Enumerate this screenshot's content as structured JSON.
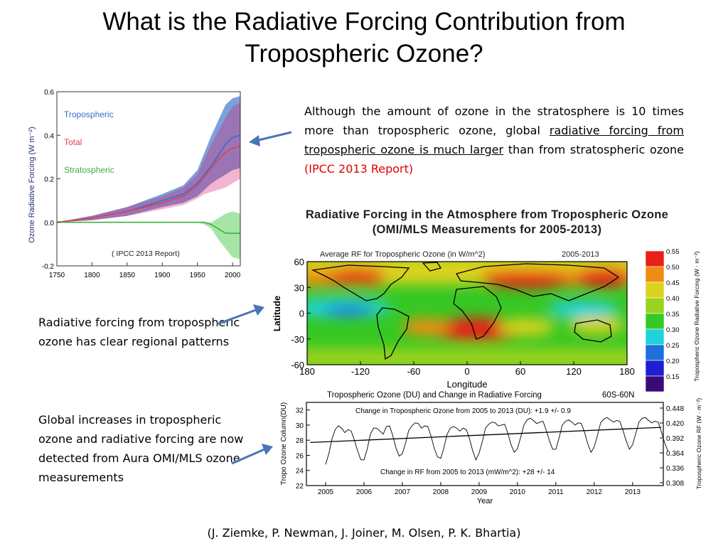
{
  "slide": {
    "title_line1": "What is the Radiative Forcing Contribution from",
    "title_line2": "Tropospheric Ozone?",
    "note_top": {
      "part1": "Although the amount of ozone in the stratosphere is 10 times more than tropospheric ozone, global ",
      "underlined": "radiative forcing from tropospheric ozone is much larger",
      "part2": " than from stratospheric ozone ",
      "red": "(IPCC 2013 Report)"
    },
    "note_mid": "Radiative forcing from tropospheric ozone has clear regional patterns",
    "note_bottom": "Global increases in tropospheric ozone and radiative forcing are now detected from Aura OMI/MLS ozone measurements",
    "credit": "(J. Ziemke, P. Newman, J. Joiner, M. Olsen, P. K. Bhartia)",
    "arrow_color": "#4a74b8"
  },
  "chart_data": [
    {
      "type": "line",
      "ylabel": "Ozone Radiative Forcing (W m⁻²)",
      "xlim": [
        1750,
        2011
      ],
      "ylim": [
        -0.2,
        0.6
      ],
      "xticks": [
        1750,
        1800,
        1850,
        1900,
        1950,
        2000
      ],
      "yticks": [
        -0.2,
        0.0,
        0.2,
        0.4,
        0.6
      ],
      "annotation": "( IPCC 2013 Report)",
      "legend": [
        "Tropospheric",
        "Total",
        "Stratospheric"
      ],
      "colors": {
        "Tropospheric": "#3a6cc8",
        "Total": "#e04050",
        "Stratospheric": "#40b040"
      },
      "x": [
        1750,
        1800,
        1850,
        1900,
        1930,
        1950,
        1960,
        1970,
        1980,
        1990,
        2000,
        2011
      ],
      "series": [
        {
          "name": "Tropospheric",
          "values": [
            0.0,
            0.02,
            0.05,
            0.1,
            0.13,
            0.18,
            0.22,
            0.26,
            0.31,
            0.36,
            0.39,
            0.4
          ],
          "band_upper": [
            0.0,
            0.03,
            0.07,
            0.13,
            0.17,
            0.24,
            0.32,
            0.4,
            0.47,
            0.54,
            0.57,
            0.58
          ],
          "band_lower": [
            0.0,
            0.01,
            0.03,
            0.07,
            0.09,
            0.12,
            0.15,
            0.18,
            0.2,
            0.22,
            0.24,
            0.25
          ]
        },
        {
          "name": "Total",
          "values": [
            0.0,
            0.02,
            0.05,
            0.09,
            0.12,
            0.17,
            0.21,
            0.25,
            0.29,
            0.32,
            0.34,
            0.35
          ],
          "band_upper": [
            0.0,
            0.03,
            0.07,
            0.12,
            0.16,
            0.22,
            0.29,
            0.36,
            0.42,
            0.48,
            0.53,
            0.55
          ],
          "band_lower": [
            0.0,
            0.01,
            0.03,
            0.06,
            0.08,
            0.11,
            0.13,
            0.14,
            0.15,
            0.16,
            0.18,
            0.2
          ]
        },
        {
          "name": "Stratospheric",
          "values": [
            0.0,
            0.0,
            0.0,
            0.0,
            0.0,
            0.0,
            0.0,
            -0.01,
            -0.03,
            -0.05,
            -0.05,
            -0.05
          ],
          "band_upper": [
            0.0,
            0.0,
            0.0,
            0.0,
            0.0,
            0.0,
            0.0,
            0.0,
            0.02,
            0.04,
            0.05,
            0.04
          ],
          "band_lower": [
            0.0,
            0.0,
            0.0,
            0.0,
            0.0,
            0.0,
            -0.01,
            -0.03,
            -0.08,
            -0.12,
            -0.16,
            -0.17
          ]
        }
      ]
    },
    {
      "type": "heatmap",
      "title_line1": "Radiative Forcing in the Atmosphere from Tropospheric Ozone",
      "title_line2": "(OMI/MLS Measurements for 2005-2013)",
      "subtitle_left": "Average RF for Tropospheric Ozone (in W/m^2)",
      "subtitle_right": "2005-2013",
      "xlabel": "Longitude",
      "ylabel": "Latitude",
      "xlim": [
        -180,
        180
      ],
      "ylim": [
        -60,
        60
      ],
      "xticks": [
        "180",
        "-120",
        "-60",
        "0",
        "60",
        "120",
        "180"
      ],
      "yticks": [
        "60",
        "30",
        "0",
        "-30",
        "-60"
      ],
      "colorbar_label": "Tropospheric Ozone Radiative Forcing (W · m⁻²)",
      "colorbar_ticks": [
        "0.55",
        "0.50",
        "0.45",
        "0.40",
        "0.35",
        "0.30",
        "0.25",
        "0.20",
        "0.15"
      ],
      "colorbar_colors": [
        "#e82018",
        "#f08c10",
        "#dcd21e",
        "#9ad21e",
        "#36c824",
        "#20d2dc",
        "#1e6edc",
        "#1e1ed2",
        "#3c0a78"
      ]
    },
    {
      "type": "line",
      "title": "Tropospheric Ozone (DU) and Change in Radiative Forcing",
      "region": "60S-60N",
      "xlabel": "Year",
      "ylabel_left": "Tropo Ozone Column(DU)",
      "ylabel_right": "Tropospheric Ozone RF (W · m⁻²)",
      "xlim": [
        2004.5,
        2013.8
      ],
      "ylim": [
        22,
        33
      ],
      "xticks": [
        2005,
        2006,
        2007,
        2008,
        2009,
        2010,
        2011,
        2012,
        2013
      ],
      "yticks_left": [
        22,
        24,
        26,
        28,
        30,
        32
      ],
      "yticks_right": [
        "0.308",
        "0.336",
        "0.364",
        "0.392",
        "0.420",
        "0.448"
      ],
      "annotation_top": "Change in Tropospheric Ozone from 2005 to 2013 (DU):  +1.9 +/- 0.9",
      "annotation_bottom": "Change in RF from 2005 to 2013 (mW/m^2):  +28 +/- 14",
      "trend": {
        "start": [
          2004.6,
          27.7
        ],
        "end": [
          2013.75,
          29.7
        ]
      },
      "monthly_ozone": [
        24.8,
        26.2,
        28.2,
        29.4,
        29.9,
        29.6,
        29.0,
        29.4,
        29.2,
        28.0,
        26.6,
        25.4,
        25.4,
        26.8,
        28.8,
        29.6,
        29.6,
        29.2,
        28.8,
        29.8,
        29.9,
        28.6,
        27.0,
        25.9,
        26.2,
        27.6,
        29.3,
        29.9,
        30.3,
        30.2,
        29.6,
        29.9,
        29.8,
        28.5,
        26.9,
        25.8,
        25.6,
        27.0,
        28.8,
        29.6,
        29.8,
        29.6,
        29.2,
        29.6,
        29.4,
        28.2,
        26.6,
        25.4,
        26.3,
        27.8,
        29.6,
        30.1,
        30.4,
        30.3,
        29.9,
        30.0,
        30.1,
        28.9,
        27.4,
        26.4,
        26.9,
        28.4,
        30.0,
        30.7,
        30.9,
        30.6,
        30.2,
        30.4,
        30.5,
        29.3,
        27.9,
        26.8,
        26.8,
        28.3,
        30.0,
        30.5,
        30.7,
        30.4,
        30.0,
        30.3,
        30.2,
        29.0,
        27.5,
        26.4,
        27.1,
        28.6,
        30.3,
        30.8,
        31.0,
        30.7,
        30.4,
        30.6,
        30.5,
        29.3,
        27.9,
        26.8,
        27.4,
        28.9,
        30.4,
        30.9,
        31.0,
        30.6,
        30.3,
        30.5,
        30.4,
        29.1,
        27.7,
        26.6
      ]
    }
  ]
}
